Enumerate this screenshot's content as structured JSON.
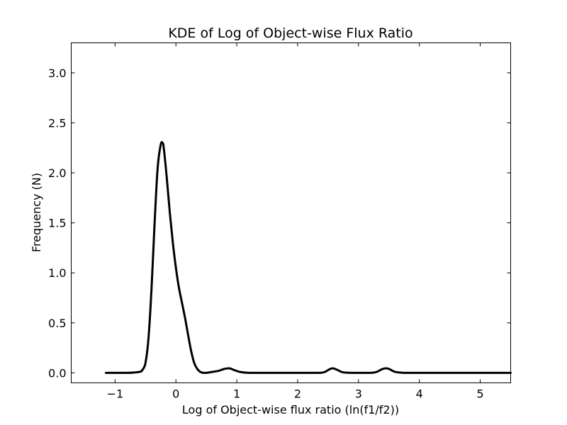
{
  "chart_data": {
    "type": "line",
    "title": "KDE of Log of Object-wise Flux Ratio",
    "xlabel": "Log of Object-wise flux ratio (ln(f1/f2))",
    "ylabel": "Frequency (N)",
    "xlim": [
      -1.72,
      5.5
    ],
    "ylim": [
      -0.1,
      3.3
    ],
    "xticks": [
      -1,
      0,
      1,
      2,
      3,
      4,
      5
    ],
    "xtick_labels": [
      "−1",
      "0",
      "1",
      "2",
      "3",
      "4",
      "5"
    ],
    "yticks": [
      0.0,
      0.5,
      1.0,
      1.5,
      2.0,
      2.5,
      3.0
    ],
    "ytick_labels": [
      "0.0",
      "0.5",
      "1.0",
      "1.5",
      "2.0",
      "2.5",
      "3.0"
    ],
    "grid": false,
    "series": [
      {
        "color": "#000000",
        "x": [
          -1.15,
          -0.8,
          -0.6,
          -0.55,
          -0.5,
          -0.45,
          -0.4,
          -0.35,
          -0.3,
          -0.25,
          -0.22,
          -0.2,
          -0.15,
          -0.1,
          -0.05,
          0.0,
          0.05,
          0.1,
          0.15,
          0.2,
          0.25,
          0.3,
          0.35,
          0.4,
          0.45,
          0.5,
          0.6,
          0.7,
          0.8,
          0.88,
          0.95,
          1.05,
          1.2,
          1.5,
          2.0,
          2.35,
          2.45,
          2.52,
          2.58,
          2.65,
          2.75,
          2.95,
          3.2,
          3.3,
          3.38,
          3.44,
          3.5,
          3.6,
          3.75,
          4.0,
          4.5,
          5.0,
          5.5
        ],
        "y": [
          0.0,
          0.0,
          0.01,
          0.03,
          0.1,
          0.35,
          0.85,
          1.5,
          2.05,
          2.28,
          2.3,
          2.25,
          1.95,
          1.6,
          1.3,
          1.05,
          0.85,
          0.7,
          0.55,
          0.38,
          0.22,
          0.1,
          0.04,
          0.01,
          0.0,
          0.0,
          0.01,
          0.02,
          0.04,
          0.045,
          0.03,
          0.01,
          0.0,
          0.0,
          0.0,
          0.0,
          0.01,
          0.035,
          0.045,
          0.03,
          0.005,
          0.0,
          0.0,
          0.01,
          0.035,
          0.045,
          0.04,
          0.01,
          0.0,
          0.0,
          0.0,
          0.0,
          0.0
        ]
      }
    ]
  }
}
